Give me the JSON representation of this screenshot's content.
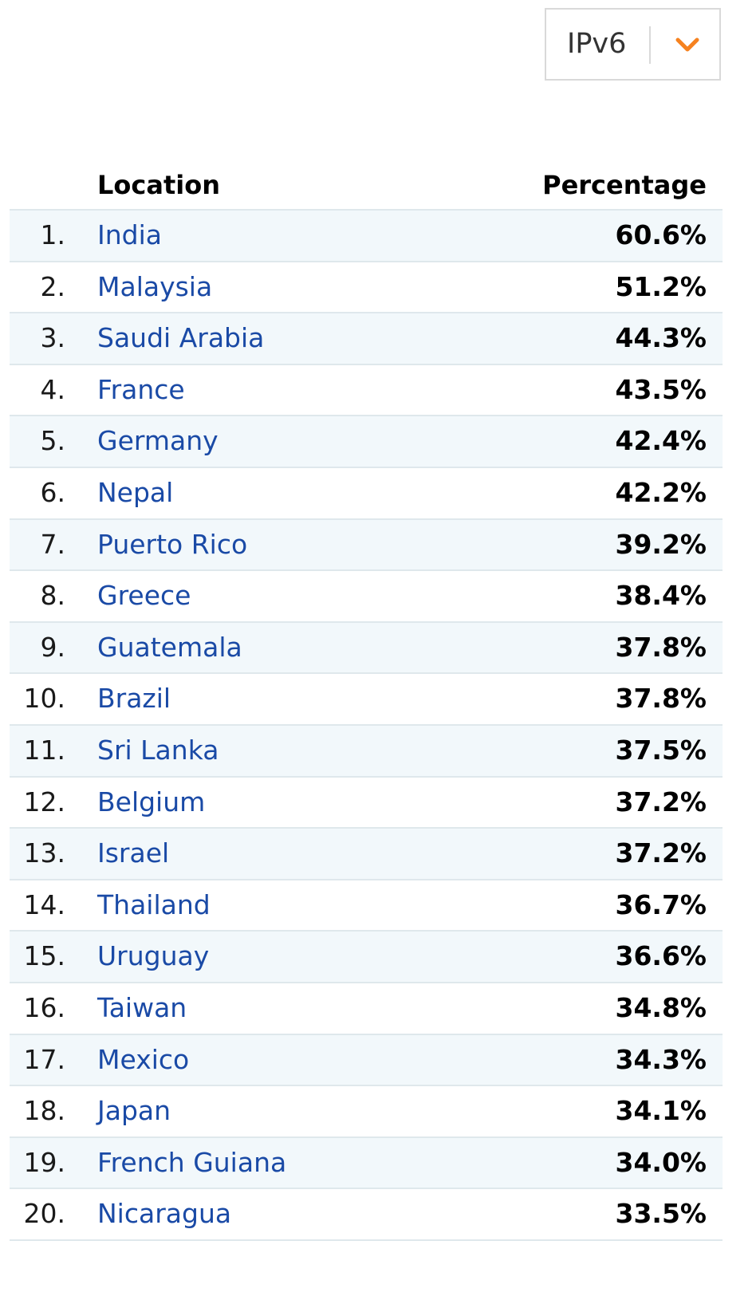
{
  "selector": {
    "value": "IPv6",
    "icon": "chevron-down-icon",
    "accent_color": "#f6821f"
  },
  "table": {
    "columns": {
      "location": "Location",
      "percentage": "Percentage"
    },
    "rows": [
      {
        "rank": "1.",
        "location": "India",
        "percentage": "60.6%"
      },
      {
        "rank": "2.",
        "location": "Malaysia",
        "percentage": "51.2%"
      },
      {
        "rank": "3.",
        "location": "Saudi Arabia",
        "percentage": "44.3%"
      },
      {
        "rank": "4.",
        "location": "France",
        "percentage": "43.5%"
      },
      {
        "rank": "5.",
        "location": "Germany",
        "percentage": "42.4%"
      },
      {
        "rank": "6.",
        "location": "Nepal",
        "percentage": "42.2%"
      },
      {
        "rank": "7.",
        "location": "Puerto Rico",
        "percentage": "39.2%"
      },
      {
        "rank": "8.",
        "location": "Greece",
        "percentage": "38.4%"
      },
      {
        "rank": "9.",
        "location": "Guatemala",
        "percentage": "37.8%"
      },
      {
        "rank": "10.",
        "location": "Brazil",
        "percentage": "37.8%"
      },
      {
        "rank": "11.",
        "location": "Sri Lanka",
        "percentage": "37.5%"
      },
      {
        "rank": "12.",
        "location": "Belgium",
        "percentage": "37.2%"
      },
      {
        "rank": "13.",
        "location": "Israel",
        "percentage": "37.2%"
      },
      {
        "rank": "14.",
        "location": "Thailand",
        "percentage": "36.7%"
      },
      {
        "rank": "15.",
        "location": "Uruguay",
        "percentage": "36.6%"
      },
      {
        "rank": "16.",
        "location": "Taiwan",
        "percentage": "34.8%"
      },
      {
        "rank": "17.",
        "location": "Mexico",
        "percentage": "34.3%"
      },
      {
        "rank": "18.",
        "location": "Japan",
        "percentage": "34.1%"
      },
      {
        "rank": "19.",
        "location": "French Guiana",
        "percentage": "34.0%"
      },
      {
        "rank": "20.",
        "location": "Nicaragua",
        "percentage": "33.5%"
      }
    ]
  }
}
